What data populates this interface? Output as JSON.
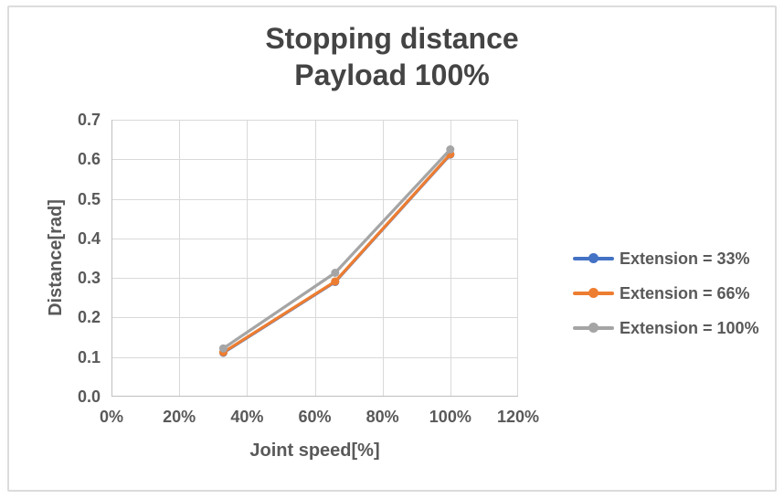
{
  "chart_data": {
    "type": "line",
    "title_line1": "Stopping distance",
    "title_line2": "Payload 100%",
    "xlabel": "Joint speed[%]",
    "ylabel": "Distance[rad]",
    "xlim": [
      0,
      120
    ],
    "ylim": [
      0,
      0.7
    ],
    "x_tick_labels": [
      "0%",
      "20%",
      "40%",
      "60%",
      "80%",
      "100%",
      "120%"
    ],
    "x_tick_values": [
      0,
      20,
      40,
      60,
      80,
      100,
      120
    ],
    "y_tick_labels": [
      "0.0",
      "0.1",
      "0.2",
      "0.3",
      "0.4",
      "0.5",
      "0.6",
      "0.7"
    ],
    "y_tick_values": [
      0,
      0.1,
      0.2,
      0.3,
      0.4,
      0.5,
      0.6,
      0.7
    ],
    "grid": true,
    "legend_position": "right",
    "x": [
      33,
      66,
      100
    ],
    "series": [
      {
        "name": "Extension = 33%",
        "color": "#4472C4",
        "values": [
          0.111,
          0.29,
          0.612
        ]
      },
      {
        "name": "Extension = 66%",
        "color": "#ED7D31",
        "values": [
          0.112,
          0.291,
          0.613
        ]
      },
      {
        "name": "Extension = 100%",
        "color": "#A5A5A5",
        "values": [
          0.122,
          0.313,
          0.625
        ]
      }
    ],
    "colors": {
      "gridline": "#D9D9D9",
      "axis_line": "#BFBFBF",
      "title_text": "#444444",
      "label_text": "#595959",
      "frame_border": "#DCDCDC"
    }
  }
}
